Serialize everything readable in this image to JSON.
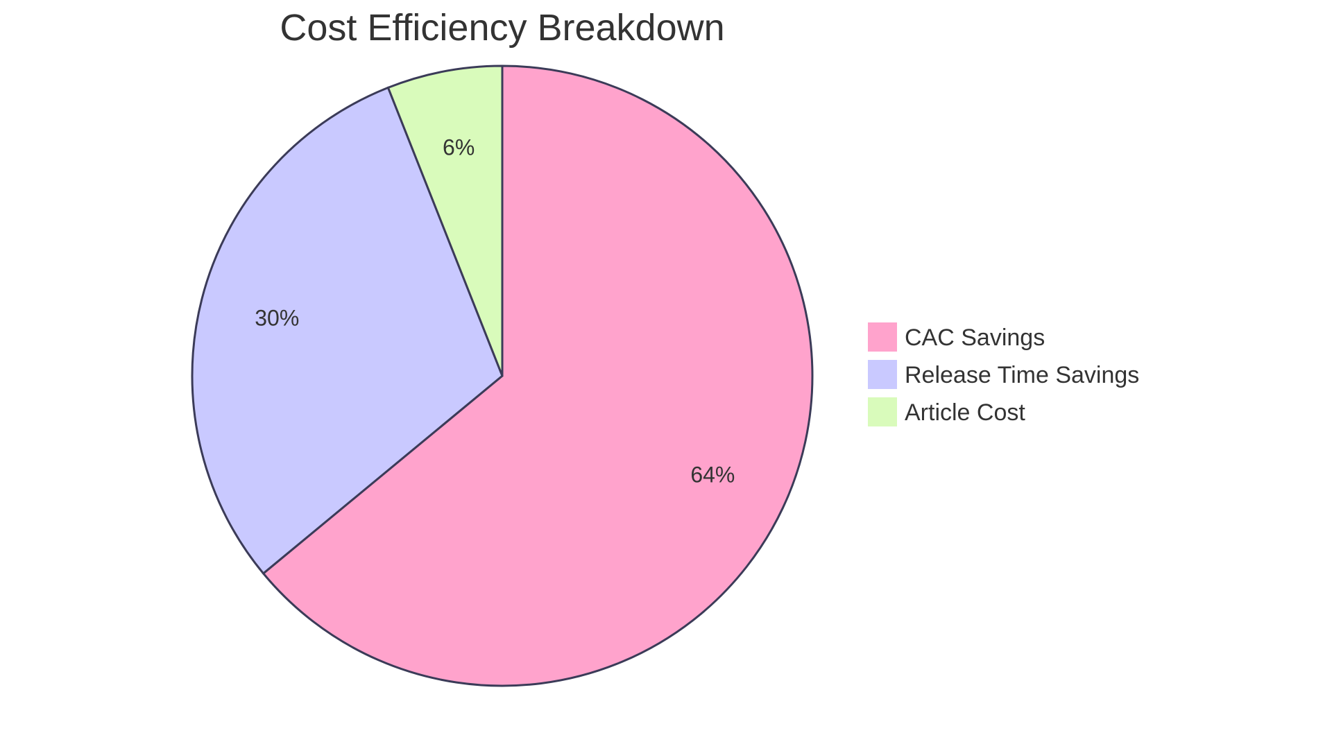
{
  "chart_data": {
    "type": "pie",
    "title": "Cost Efficiency Breakdown",
    "slices": [
      {
        "label": "CAC Savings",
        "value": 64,
        "display": "64%",
        "color": "#ffa3cc"
      },
      {
        "label": "Release Time Savings",
        "value": 30,
        "display": "30%",
        "color": "#c9c9ff"
      },
      {
        "label": "Article Cost",
        "value": 6,
        "display": "6%",
        "color": "#d9fbbb"
      }
    ],
    "stroke_color": "#3b3b58",
    "legend_position": "right"
  }
}
